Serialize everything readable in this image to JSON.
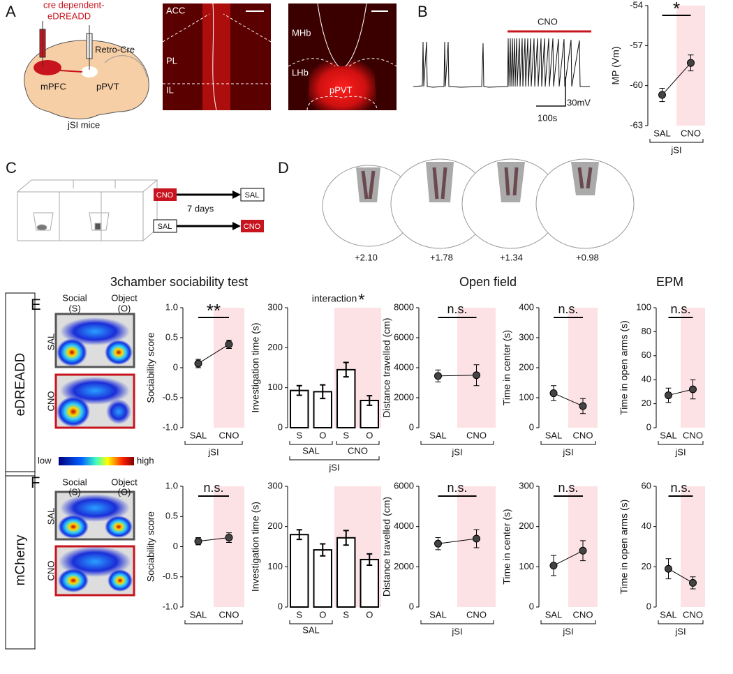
{
  "panel_letters": [
    "A",
    "B",
    "C",
    "D",
    "E",
    "F"
  ],
  "panel_a": {
    "virus": [
      "cre dependent-",
      "eDREADD"
    ],
    "retro": "Retro-Cre",
    "source": "mPFC",
    "target": "pPVT",
    "mice": "jSI mice",
    "image1_regions": [
      "ACC",
      "PL",
      "IL"
    ],
    "image2_regions": [
      "MHb",
      "LHb",
      "pPVT"
    ]
  },
  "panel_b_trace": {
    "drug": "CNO",
    "voltage_scale": "30mV",
    "time_scale": "100s"
  },
  "panel_c": {
    "first": [
      "CNO",
      "SAL"
    ],
    "interval": "7 days",
    "second": [
      "SAL",
      "CNO"
    ]
  },
  "panel_d": {
    "sections": [
      "+2.10",
      "+1.78",
      "+1.34",
      "+0.98"
    ]
  },
  "headings": {
    "sociability": "3chamber sociability test",
    "open_field": "Open field",
    "epm": "EPM"
  },
  "rows": [
    {
      "label": "eDREADD",
      "social": [
        "Social",
        "(S)"
      ],
      "object": [
        "Object",
        "(O)"
      ],
      "conditions": [
        "SAL",
        "CNO"
      ]
    },
    {
      "label": "mCherry",
      "social": [
        "Social",
        "(S)"
      ],
      "object": [
        "Object",
        "(O)"
      ],
      "conditions": [
        "SAL",
        "CNO"
      ]
    }
  ],
  "colorbar": {
    "low": "low",
    "high": "high"
  },
  "chart_data": [
    {
      "type": "line",
      "ylabel": "MP (Vm)",
      "categories": [
        "SAL",
        "CNO"
      ],
      "group_label": "jSI",
      "values": [
        -60.7,
        -58.3
      ],
      "errors": [
        0.5,
        0.6
      ],
      "ylim": [
        -63,
        -54
      ],
      "yticks": [
        -63,
        -60,
        -57,
        -54
      ],
      "annotation": "*",
      "color": "#444444"
    },
    {
      "type": "line",
      "ylabel": "Sociability score",
      "categories": [
        "SAL",
        "CNO"
      ],
      "group_label": "jSI",
      "values": [
        0.07,
        0.39
      ],
      "errors": [
        0.07,
        0.07
      ],
      "ylim": [
        -1,
        1
      ],
      "yticks": [
        {
          "value": -1,
          "label": "-1.0"
        },
        -0.5,
        0,
        0.5,
        {
          "value": 1,
          "label": "1.0"
        }
      ],
      "annotation": "**",
      "color": "#444444"
    },
    {
      "type": "bar",
      "ylabel": "Investigation time (s)",
      "title": "interaction",
      "annotation": "*",
      "categories": [
        "S",
        "O",
        "S",
        "O"
      ],
      "groups": [
        "SAL",
        "CNO"
      ],
      "group_label": "jSI",
      "values": [
        93,
        90,
        145,
        68
      ],
      "errors": [
        12,
        17,
        18,
        12
      ],
      "ylim": [
        0,
        300
      ],
      "yticks": [
        0,
        100,
        200,
        300
      ],
      "color": "#ffffff"
    },
    {
      "type": "line",
      "ylabel": "Distance travelled (cm)",
      "categories": [
        "SAL",
        "CNO"
      ],
      "group_label": "jSI",
      "values": [
        3450,
        3500
      ],
      "errors": [
        400,
        700
      ],
      "ylim": [
        0,
        8000
      ],
      "yticks": [
        0,
        2000,
        4000,
        6000,
        8000
      ],
      "annotation": "n.s.",
      "color": "#444444"
    },
    {
      "type": "line",
      "ylabel": "Time in center (s)",
      "categories": [
        "SAL",
        "CNO"
      ],
      "group_label": "jSI",
      "values": [
        115,
        72
      ],
      "errors": [
        25,
        25
      ],
      "ylim": [
        0,
        400
      ],
      "yticks": [
        0,
        100,
        200,
        300,
        400
      ],
      "annotation": "n.s.",
      "color": "#444444"
    },
    {
      "type": "line",
      "ylabel": "Time in open arms (s)",
      "categories": [
        "SAL",
        "CNO"
      ],
      "group_label": "jSI",
      "values": [
        27,
        32
      ],
      "errors": [
        6,
        8
      ],
      "ylim": [
        0,
        100
      ],
      "yticks": [
        0,
        20,
        40,
        60,
        80,
        100
      ],
      "annotation": "n.s.",
      "color": "#444444"
    },
    {
      "type": "line",
      "ylabel": "Sociability score",
      "categories": [
        "SAL",
        "CNO"
      ],
      "values": [
        0.09,
        0.15
      ],
      "errors": [
        0.06,
        0.08
      ],
      "ylim": [
        -1,
        1
      ],
      "yticks": [
        {
          "value": -1,
          "label": "-1.0"
        },
        -0.5,
        0,
        0.5,
        {
          "value": 1,
          "label": "1.0"
        }
      ],
      "annotation": "n.s.",
      "color": "#444444"
    },
    {
      "type": "bar",
      "ylabel": "Investigation time (s)",
      "categories": [
        "S",
        "O",
        "S",
        "O"
      ],
      "groups": [
        "SAL"
      ],
      "values": [
        180,
        142,
        172,
        118
      ],
      "errors": [
        12,
        15,
        18,
        14
      ],
      "ylim": [
        0,
        300
      ],
      "yticks": [
        0,
        100,
        200,
        300
      ],
      "color": "#ffffff"
    },
    {
      "type": "line",
      "ylabel": "Distance travelled (cm)",
      "categories": [
        "SAL",
        "CNO"
      ],
      "group_label": "jSI",
      "values": [
        3150,
        3400
      ],
      "errors": [
        300,
        450
      ],
      "ylim": [
        0,
        6000
      ],
      "yticks": [
        0,
        2000,
        4000,
        6000
      ],
      "annotation": "n.s.",
      "color": "#444444"
    },
    {
      "type": "line",
      "ylabel": "Time in center (s)",
      "categories": [
        "SAL",
        "CNO"
      ],
      "group_label": "jSI",
      "values": [
        103,
        140
      ],
      "errors": [
        25,
        25
      ],
      "ylim": [
        0,
        300
      ],
      "yticks": [
        0,
        100,
        200,
        300
      ],
      "annotation": "n.s.",
      "color": "#444444"
    },
    {
      "type": "line",
      "ylabel": "Time in open arms (s)",
      "categories": [
        "SAL",
        "CNO"
      ],
      "group_label": "jSI",
      "values": [
        19,
        12
      ],
      "errors": [
        5,
        3
      ],
      "ylim": [
        0,
        60
      ],
      "yticks": [
        0,
        20,
        40,
        60
      ],
      "annotation": "n.s.",
      "color": "#444444"
    }
  ]
}
